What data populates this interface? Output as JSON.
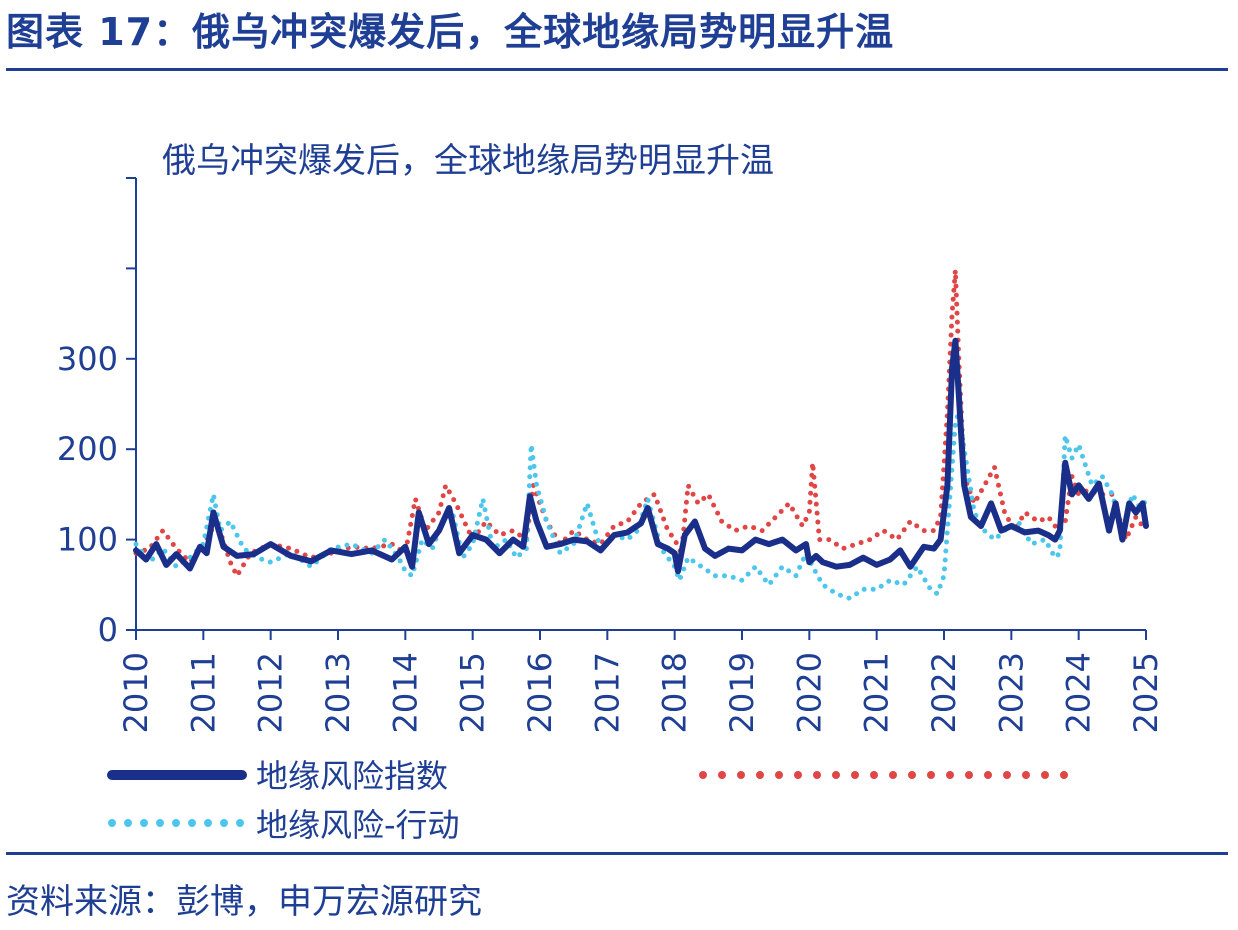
{
  "figure": {
    "title": "图表 17：俄乌冲突爆发后，全球地缘局势明显升温",
    "source": "资料来源：彭博，申万宏源研究"
  },
  "chart_data": {
    "type": "line",
    "title": "俄乌冲突爆发后，全球地缘局势明显升温",
    "xlabel": "",
    "ylabel": "",
    "xlim": [
      2010,
      2025
    ],
    "ylim": [
      0,
      500
    ],
    "yticks": [
      0,
      100,
      200,
      300
    ],
    "xticks": [
      "2010",
      "2011",
      "2012",
      "2013",
      "2014",
      "2015",
      "2016",
      "2017",
      "2018",
      "2019",
      "2020",
      "2021",
      "2022",
      "2023",
      "2024",
      "2025"
    ],
    "grid": false,
    "legend_position": "bottom",
    "series": [
      {
        "name": "地缘风险指数",
        "style": "solid",
        "color": "#1a2f8a",
        "x": [
          2010.0,
          2010.15,
          2010.3,
          2010.45,
          2010.6,
          2010.8,
          2010.95,
          2011.05,
          2011.15,
          2011.3,
          2011.5,
          2011.75,
          2012.0,
          2012.3,
          2012.6,
          2012.9,
          2013.2,
          2013.5,
          2013.8,
          2014.0,
          2014.1,
          2014.2,
          2014.35,
          2014.5,
          2014.65,
          2014.8,
          2015.0,
          2015.2,
          2015.4,
          2015.6,
          2015.75,
          2015.85,
          2015.95,
          2016.1,
          2016.3,
          2016.5,
          2016.7,
          2016.9,
          2017.1,
          2017.3,
          2017.5,
          2017.6,
          2017.75,
          2017.9,
          2018.0,
          2018.05,
          2018.15,
          2018.3,
          2018.45,
          2018.6,
          2018.8,
          2019.0,
          2019.2,
          2019.4,
          2019.6,
          2019.8,
          2019.95,
          2020.0,
          2020.1,
          2020.2,
          2020.4,
          2020.6,
          2020.8,
          2021.0,
          2021.2,
          2021.35,
          2021.5,
          2021.7,
          2021.85,
          2021.95,
          2022.05,
          2022.12,
          2022.17,
          2022.22,
          2022.3,
          2022.4,
          2022.55,
          2022.7,
          2022.85,
          2023.0,
          2023.2,
          2023.4,
          2023.55,
          2023.65,
          2023.72,
          2023.8,
          2023.9,
          2024.0,
          2024.15,
          2024.3,
          2024.45,
          2024.55,
          2024.65,
          2024.75,
          2024.85,
          2024.95,
          2025.0
        ],
        "y": [
          88,
          78,
          95,
          72,
          84,
          68,
          92,
          85,
          130,
          92,
          82,
          84,
          95,
          82,
          76,
          88,
          84,
          88,
          78,
          92,
          70,
          130,
          95,
          110,
          135,
          85,
          105,
          100,
          85,
          100,
          92,
          148,
          120,
          92,
          95,
          100,
          98,
          88,
          105,
          108,
          118,
          135,
          95,
          90,
          85,
          65,
          105,
          120,
          90,
          82,
          90,
          88,
          100,
          95,
          100,
          88,
          95,
          75,
          82,
          75,
          70,
          72,
          80,
          72,
          78,
          88,
          70,
          92,
          90,
          100,
          160,
          290,
          320,
          260,
          160,
          125,
          115,
          140,
          110,
          115,
          108,
          110,
          105,
          100,
          110,
          185,
          150,
          160,
          145,
          162,
          110,
          140,
          100,
          140,
          130,
          140,
          115
        ]
      },
      {
        "name": "",
        "style": "dotted",
        "color": "#e04646",
        "x": [
          2010.0,
          2010.2,
          2010.4,
          2010.6,
          2010.8,
          2011.0,
          2011.2,
          2011.4,
          2011.5,
          2011.7,
          2012.0,
          2012.3,
          2012.6,
          2012.9,
          2013.2,
          2013.5,
          2013.8,
          2014.0,
          2014.15,
          2014.3,
          2014.5,
          2014.6,
          2014.75,
          2015.0,
          2015.2,
          2015.4,
          2015.6,
          2015.8,
          2015.9,
          2016.1,
          2016.3,
          2016.5,
          2016.7,
          2016.9,
          2017.1,
          2017.3,
          2017.5,
          2017.7,
          2017.9,
          2018.0,
          2018.1,
          2018.2,
          2018.35,
          2018.5,
          2018.7,
          2018.9,
          2019.1,
          2019.3,
          2019.5,
          2019.7,
          2019.9,
          2020.0,
          2020.05,
          2020.15,
          2020.3,
          2020.5,
          2020.7,
          2020.9,
          2021.1,
          2021.3,
          2021.5,
          2021.7,
          2021.85,
          2021.95,
          2022.05,
          2022.12,
          2022.17,
          2022.22,
          2022.3,
          2022.45,
          2022.6,
          2022.75,
          2022.9,
          2023.05,
          2023.2,
          2023.4,
          2023.55,
          2023.7,
          2023.8,
          2023.9,
          2024.0,
          2024.15,
          2024.3,
          2024.5,
          2024.7,
          2024.85,
          2025.0
        ],
        "y": [
          85,
          90,
          110,
          90,
          75,
          95,
          120,
          75,
          60,
          85,
          95,
          90,
          80,
          85,
          92,
          90,
          95,
          85,
          145,
          110,
          130,
          160,
          140,
          100,
          120,
          105,
          110,
          100,
          160,
          120,
          95,
          110,
          100,
          95,
          115,
          120,
          140,
          150,
          110,
          100,
          85,
          160,
          140,
          150,
          120,
          110,
          115,
          110,
          125,
          140,
          115,
          130,
          185,
          100,
          100,
          90,
          95,
          100,
          110,
          100,
          120,
          110,
          110,
          125,
          240,
          350,
          398,
          300,
          170,
          140,
          160,
          180,
          130,
          110,
          130,
          120,
          125,
          110,
          120,
          170,
          150,
          155,
          150,
          150,
          100,
          125,
          110
        ]
      },
      {
        "name": "地缘风险-行动",
        "style": "dotted",
        "color": "#4cc6ec",
        "x": [
          2010.0,
          2010.2,
          2010.4,
          2010.6,
          2010.8,
          2011.0,
          2011.15,
          2011.25,
          2011.4,
          2011.6,
          2011.8,
          2012.0,
          2012.3,
          2012.6,
          2012.9,
          2013.2,
          2013.5,
          2013.7,
          2013.9,
          2014.0,
          2014.1,
          2014.25,
          2014.4,
          2014.55,
          2014.7,
          2014.85,
          2015.0,
          2015.15,
          2015.3,
          2015.5,
          2015.65,
          2015.8,
          2015.87,
          2015.95,
          2016.1,
          2016.3,
          2016.5,
          2016.7,
          2016.9,
          2017.1,
          2017.3,
          2017.45,
          2017.6,
          2017.8,
          2018.0,
          2018.07,
          2018.2,
          2018.4,
          2018.6,
          2018.8,
          2019.0,
          2019.2,
          2019.4,
          2019.6,
          2019.8,
          2019.95,
          2020.05,
          2020.2,
          2020.4,
          2020.6,
          2020.8,
          2021.0,
          2021.2,
          2021.4,
          2021.6,
          2021.8,
          2021.9,
          2022.0,
          2022.1,
          2022.17,
          2022.22,
          2022.3,
          2022.45,
          2022.6,
          2022.75,
          2022.9,
          2023.1,
          2023.3,
          2023.5,
          2023.65,
          2023.72,
          2023.8,
          2023.9,
          2024.0,
          2024.2,
          2024.35,
          2024.5,
          2024.65,
          2024.8,
          2024.95,
          2025.0
        ],
        "y": [
          95,
          75,
          90,
          70,
          80,
          95,
          150,
          110,
          120,
          90,
          80,
          75,
          85,
          70,
          90,
          95,
          85,
          100,
          80,
          65,
          60,
          100,
          90,
          120,
          130,
          80,
          95,
          145,
          90,
          100,
          80,
          90,
          205,
          160,
          120,
          85,
          95,
          140,
          90,
          105,
          100,
          110,
          145,
          90,
          70,
          55,
          80,
          70,
          60,
          60,
          55,
          70,
          50,
          70,
          60,
          85,
          70,
          50,
          40,
          35,
          45,
          45,
          55,
          50,
          70,
          45,
          40,
          60,
          160,
          230,
          240,
          200,
          130,
          110,
          100,
          110,
          120,
          95,
          100,
          80,
          85,
          215,
          190,
          205,
          160,
          170,
          150,
          110,
          150,
          130,
          150
        ]
      }
    ]
  }
}
